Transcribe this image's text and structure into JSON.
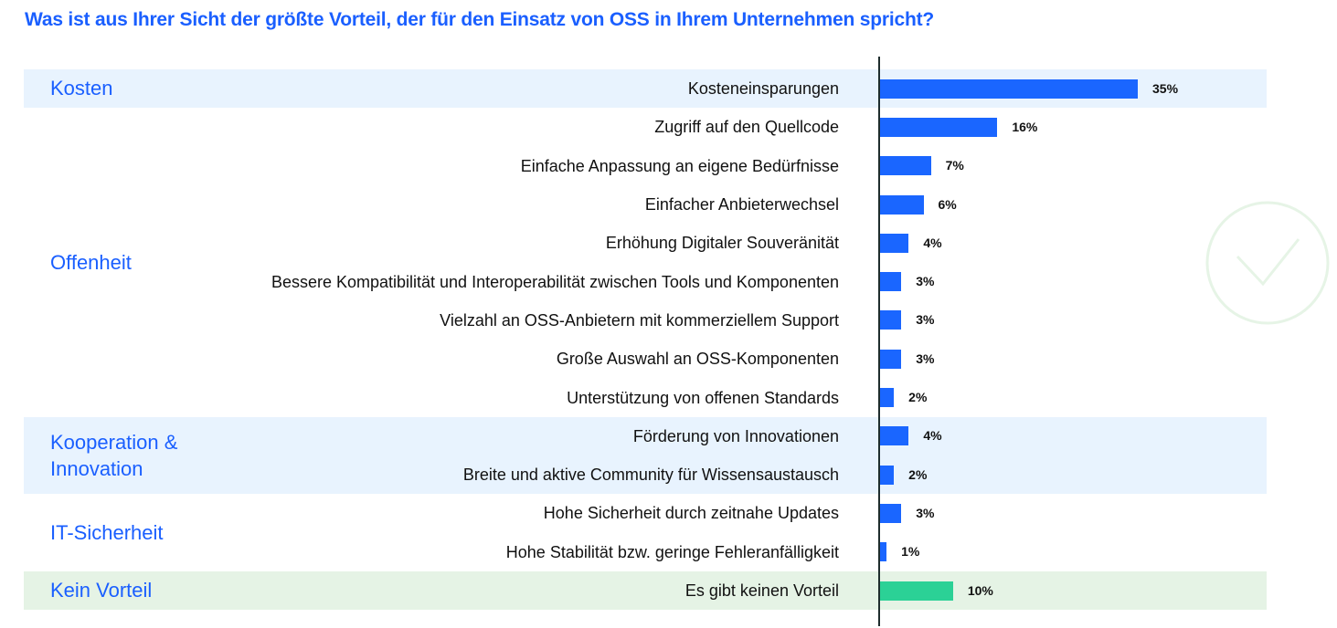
{
  "chart_data": {
    "type": "bar",
    "orientation": "horizontal",
    "title": "Was ist aus Ihrer Sicht der größte Vorteil, der für den Einsatz von OSS in Ihrem Unternehmen spricht?",
    "xlabel": "",
    "ylabel": "",
    "unit": "%",
    "xlim": [
      0,
      35
    ],
    "grid": false,
    "groups": [
      {
        "name": "Kosten",
        "color": "#e8f3fe",
        "rows": [
          0
        ]
      },
      {
        "name": "Offenheit",
        "color": "#ffffff",
        "rows": [
          1,
          2,
          3,
          4,
          5,
          6,
          7,
          8
        ]
      },
      {
        "name": "Kooperation & Innovation",
        "color": "#e8f3fe",
        "rows": [
          9,
          10
        ]
      },
      {
        "name": "IT-Sicherheit",
        "color": "#ffffff",
        "rows": [
          11,
          12
        ]
      },
      {
        "name": "Kein Vorteil",
        "color": "#e5f3e5",
        "rows": [
          13
        ]
      }
    ],
    "categories": [
      "Kosteneinsparungen",
      "Zugriff auf den Quellcode",
      "Einfache Anpassung an eigene Bedürfnisse",
      "Einfacher Anbieterwechsel",
      "Erhöhung Digitaler Souveränität",
      "Bessere Kompatibilität und Interoperabilität zwischen Tools und Komponenten",
      "Vielzahl an OSS-Anbietern mit kommerziellem Support",
      "Große Auswahl an OSS-Komponenten",
      "Unterstützung von offenen Standards",
      "Förderung von Innovationen",
      "Breite und aktive Community für Wissensaustausch",
      "Hohe Sicherheit durch zeitnahe Updates",
      "Hohe Stabilität bzw. geringe Fehleranfälligkeit",
      "Es gibt keinen Vorteil"
    ],
    "values": [
      35,
      16,
      7,
      6,
      4,
      3,
      3,
      3,
      2,
      4,
      2,
      3,
      1,
      10
    ],
    "value_labels": [
      "35%",
      "16%",
      "7%",
      "6%",
      "4%",
      "3%",
      "3%",
      "3%",
      "2%",
      "4%",
      "2%",
      "3%",
      "1%",
      "10%"
    ],
    "bar_colors": [
      "#1a66ff",
      "#1a66ff",
      "#1a66ff",
      "#1a66ff",
      "#1a66ff",
      "#1a66ff",
      "#1a66ff",
      "#1a66ff",
      "#1a66ff",
      "#1a66ff",
      "#1a66ff",
      "#1a66ff",
      "#1a66ff",
      "#2bd196"
    ],
    "legend": "none"
  },
  "decoration": {
    "icon": "checkmark-circle-icon",
    "color": "#e6f4e6"
  }
}
